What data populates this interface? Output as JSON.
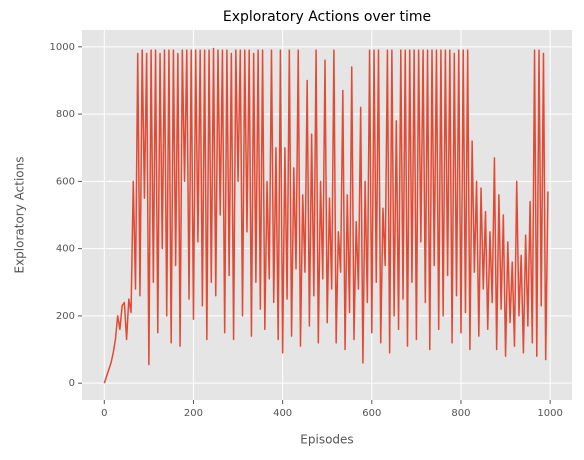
{
  "chart_data": {
    "type": "line",
    "title": "Exploratory Actions over time",
    "x_label": "Episodes",
    "y_label": "Exploratory Actions",
    "x": [
      0,
      5,
      10,
      15,
      20,
      25,
      30,
      35,
      40,
      45,
      50,
      55,
      60,
      65,
      70,
      75,
      80,
      85,
      90,
      95,
      100,
      105,
      110,
      115,
      120,
      125,
      130,
      135,
      140,
      145,
      150,
      155,
      160,
      165,
      170,
      175,
      180,
      185,
      190,
      195,
      200,
      205,
      210,
      215,
      220,
      225,
      230,
      235,
      240,
      245,
      250,
      255,
      260,
      265,
      270,
      275,
      280,
      285,
      290,
      295,
      300,
      305,
      310,
      315,
      320,
      325,
      330,
      335,
      340,
      345,
      350,
      355,
      360,
      365,
      370,
      375,
      380,
      385,
      390,
      395,
      400,
      405,
      410,
      415,
      420,
      425,
      430,
      435,
      440,
      445,
      450,
      455,
      460,
      465,
      470,
      475,
      480,
      485,
      490,
      495,
      500,
      505,
      510,
      515,
      520,
      525,
      530,
      535,
      540,
      545,
      550,
      555,
      560,
      565,
      570,
      575,
      580,
      585,
      590,
      595,
      600,
      605,
      610,
      615,
      620,
      625,
      630,
      635,
      640,
      645,
      650,
      655,
      660,
      665,
      670,
      675,
      680,
      685,
      690,
      695,
      700,
      705,
      710,
      715,
      720,
      725,
      730,
      735,
      740,
      745,
      750,
      755,
      760,
      765,
      770,
      775,
      780,
      785,
      790,
      795,
      800,
      805,
      810,
      815,
      820,
      825,
      830,
      835,
      840,
      845,
      850,
      855,
      860,
      865,
      870,
      875,
      880,
      885,
      890,
      895,
      900,
      905,
      910,
      915,
      920,
      925,
      930,
      935,
      940,
      945,
      950,
      955,
      960,
      965,
      970,
      975,
      980,
      985,
      990,
      995
    ],
    "series": [
      {
        "name": "Exploratory Actions",
        "color": "#e24a33",
        "values": [
          0,
          20,
          40,
          60,
          90,
          130,
          200,
          160,
          230,
          240,
          130,
          250,
          210,
          600,
          280,
          980,
          260,
          990,
          550,
          980,
          55,
          990,
          300,
          990,
          150,
          980,
          400,
          990,
          200,
          990,
          120,
          990,
          350,
          980,
          110,
          990,
          600,
          990,
          250,
          990,
          190,
          990,
          420,
          990,
          230,
          990,
          130,
          990,
          300,
          995,
          260,
          990,
          500,
          990,
          150,
          990,
          320,
          980,
          130,
          990,
          600,
          990,
          200,
          990,
          450,
          990,
          140,
          980,
          300,
          990,
          220,
          990,
          160,
          600,
          310,
          990,
          240,
          700,
          130,
          990,
          90,
          700,
          250,
          990,
          140,
          640,
          340,
          990,
          110,
          560,
          330,
          900,
          170,
          740,
          260,
          990,
          120,
          600,
          310,
          960,
          180,
          550,
          280,
          990,
          120,
          450,
          330,
          870,
          100,
          560,
          210,
          940,
          130,
          480,
          280,
          820,
          60,
          600,
          240,
          990,
          150,
          990,
          300,
          990,
          120,
          520,
          350,
          990,
          90,
          990,
          200,
          780,
          160,
          990,
          250,
          990,
          110,
          990,
          300,
          990,
          130,
          990,
          420,
          990,
          240,
          990,
          100,
          990,
          350,
          990,
          160,
          990,
          200,
          990,
          320,
          990,
          120,
          980,
          260,
          990,
          150,
          990,
          210,
          990,
          100,
          720,
          330,
          600,
          140,
          580,
          280,
          510,
          160,
          450,
          240,
          670,
          100,
          560,
          220,
          500,
          80,
          420,
          180,
          360,
          110,
          600,
          200,
          380,
          90,
          440,
          170,
          540,
          120,
          990,
          80,
          990,
          230,
          980,
          70,
          570
        ]
      }
    ],
    "xlim": [
      -50,
      1049
    ],
    "ylim": [
      -50,
      1050
    ],
    "xticks": [
      0,
      200,
      400,
      600,
      800,
      1000
    ],
    "yticks": [
      0,
      200,
      400,
      600,
      800,
      1000
    ],
    "grid": true
  }
}
